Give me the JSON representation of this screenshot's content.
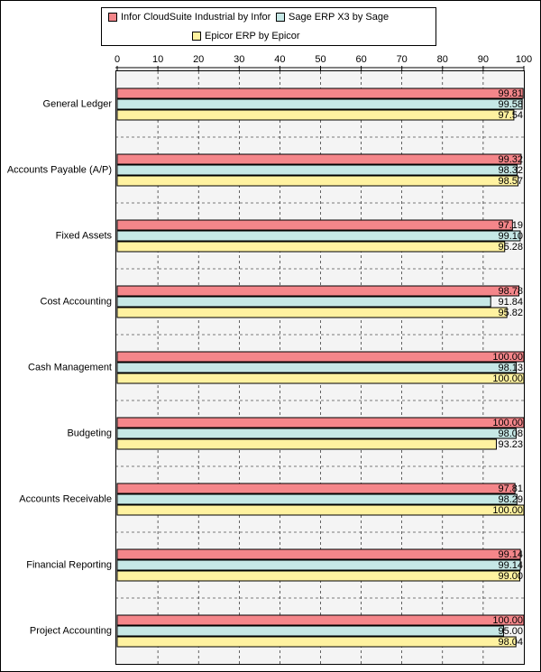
{
  "chart_data": {
    "type": "hbar",
    "categories": [
      "General Ledger",
      "Accounts Payable (A/P)",
      "Fixed Assets",
      "Cost Accounting",
      "Cash Management",
      "Budgeting",
      "Accounts Receivable",
      "Financial Reporting",
      "Project Accounting"
    ],
    "series": [
      {
        "name": "Infor CloudSuite Industrial by Infor",
        "color": "#f4868a",
        "values": [
          99.81,
          99.32,
          97.19,
          98.78,
          100,
          100,
          97.81,
          99.14,
          100
        ],
        "value_labels": [
          "99.81",
          "99.32",
          "97.19",
          "98.78",
          "100.00",
          "100.00",
          "97.81",
          "99.14",
          "100.00"
        ]
      },
      {
        "name": "Sage ERP X3 by Sage",
        "color": "#c6e8e6",
        "values": [
          99.58,
          98.32,
          99.1,
          91.84,
          98.13,
          98.08,
          98.29,
          99.14,
          95.0
        ],
        "value_labels": [
          "99.58",
          "98.32",
          "99.10",
          "91.84",
          "98.13",
          "98.08",
          "98.29",
          "99.14",
          "95.00"
        ]
      },
      {
        "name": "Epicor ERP by Epicor",
        "color": "#fff2a0",
        "values": [
          97.54,
          98.57,
          95.28,
          95.82,
          100,
          93.23,
          100,
          99.0,
          98.04
        ],
        "value_labels": [
          "97.54",
          "98.57",
          "95.28",
          "95.82",
          "100.00",
          "93.23",
          "100.00",
          "99.00",
          "98.04"
        ]
      }
    ],
    "xlim": [
      0,
      100
    ],
    "xticks": [
      0,
      10,
      20,
      30,
      40,
      50,
      60,
      70,
      80,
      90,
      100
    ],
    "grid": true
  }
}
